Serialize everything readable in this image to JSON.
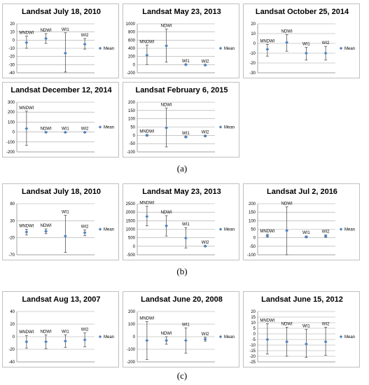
{
  "captions": [
    "(a)",
    "(b)",
    "(c)"
  ],
  "legend_label": "Mean",
  "colors": {
    "marker": "#4f81bd",
    "error": "#555555",
    "grid": "#a6a6a6"
  },
  "chart_data": [
    {
      "type": "scatter",
      "title": "Landsat July 18, 2010",
      "categories": [
        "MNDWI",
        "NDWI",
        "WI1",
        "WI2"
      ],
      "yticks": [
        20,
        10,
        0,
        -10,
        -20,
        -30,
        -40
      ],
      "ylim": [
        -40,
        20
      ],
      "series": [
        {
          "name": "Mean",
          "values": [
            -3,
            2,
            -16,
            -5
          ],
          "lower": [
            -10,
            -4,
            -39,
            -11
          ],
          "upper": [
            5,
            8,
            9,
            2
          ]
        }
      ]
    },
    {
      "type": "scatter",
      "title": "Landsat May 23, 2013",
      "categories": [
        "MNDWI",
        "NDWI",
        "WI1",
        "WI2"
      ],
      "yticks": [
        1000,
        800,
        600,
        400,
        200,
        0,
        -200
      ],
      "ylim": [
        -200,
        1000
      ],
      "series": [
        {
          "name": "Mean",
          "values": [
            230,
            460,
            0,
            -10
          ],
          "lower": [
            0,
            60,
            -10,
            -20
          ],
          "upper": [
            480,
            870,
            10,
            0
          ]
        }
      ]
    },
    {
      "type": "scatter",
      "title": "Landsat October 25, 2014",
      "categories": [
        "MNDWI",
        "NDWI",
        "WI1",
        "WI2"
      ],
      "yticks": [
        20,
        10,
        0,
        -10,
        -20,
        -30
      ],
      "ylim": [
        -30,
        20
      ],
      "series": [
        {
          "name": "Mean",
          "values": [
            -6,
            1,
            -10,
            -10
          ],
          "lower": [
            -13,
            -8,
            -17,
            -17
          ],
          "upper": [
            -1,
            9,
            -4,
            -3
          ]
        }
      ]
    },
    {
      "type": "scatter",
      "title": "Landsat December 12, 2014",
      "categories": [
        "MNDWI",
        "NDWI",
        "WI1",
        "WI2"
      ],
      "yticks": [
        300,
        200,
        100,
        0,
        -100,
        -200
      ],
      "ylim": [
        -200,
        300
      ],
      "series": [
        {
          "name": "Mean",
          "values": [
            35,
            -2,
            -3,
            -3
          ],
          "lower": [
            -135,
            -5,
            -5,
            -5
          ],
          "upper": [
            210,
            2,
            1,
            1
          ]
        }
      ]
    },
    {
      "type": "scatter",
      "title": "Landsat February 6, 2015",
      "categories": [
        "MNDWI",
        "NDWI",
        "WI1",
        "WI2"
      ],
      "yticks": [
        200,
        150,
        100,
        50,
        0,
        -50,
        -100
      ],
      "ylim": [
        -100,
        200
      ],
      "series": [
        {
          "name": "Mean",
          "values": [
            0,
            45,
            -10,
            -4
          ],
          "lower": [
            -4,
            -70,
            -14,
            -8
          ],
          "upper": [
            4,
            165,
            -6,
            0
          ]
        }
      ]
    },
    {
      "type": "scatter",
      "title": "Landsat July 18, 2010",
      "categories": [
        "MNDWI",
        "NDWI",
        "WI1",
        "WI2"
      ],
      "yticks": [
        80,
        30,
        -20,
        -70
      ],
      "ylim": [
        -70,
        80
      ],
      "series": [
        {
          "name": "Mean",
          "values": [
            -3,
            -1,
            -15,
            -5
          ],
          "lower": [
            -12,
            -8,
            -63,
            -14
          ],
          "upper": [
            5,
            6,
            46,
            3
          ]
        }
      ]
    },
    {
      "type": "scatter",
      "title": "Landsat May 23, 2013",
      "categories": [
        "MNDWI",
        "NDWI",
        "WI1",
        "WI2"
      ],
      "yticks": [
        2500,
        2000,
        1500,
        1000,
        500,
        0,
        -500
      ],
      "ylim": [
        -500,
        2500
      ],
      "series": [
        {
          "name": "Mean",
          "values": [
            1750,
            1200,
            480,
            10
          ],
          "lower": [
            1200,
            600,
            -100,
            -20
          ],
          "upper": [
            2350,
            1800,
            1100,
            40
          ]
        }
      ]
    },
    {
      "type": "scatter",
      "title": "Landsat Jul 2, 2016",
      "categories": [
        "MNDWI",
        "NDWI",
        "WI1",
        "WI2"
      ],
      "yticks": [
        200,
        150,
        100,
        50,
        0,
        -50,
        -100
      ],
      "ylim": [
        -100,
        200
      ],
      "series": [
        {
          "name": "Mean",
          "values": [
            12,
            42,
            5,
            10
          ],
          "lower": [
            4,
            -100,
            0,
            3
          ],
          "upper": [
            20,
            182,
            10,
            17
          ]
        }
      ]
    },
    {
      "type": "scatter",
      "title": "Landsat Aug 13, 2007",
      "categories": [
        "MNDWI",
        "NDWI",
        "WI1",
        "WI2"
      ],
      "yticks": [
        40,
        20,
        0,
        -20,
        -40
      ],
      "ylim": [
        -40,
        40
      ],
      "series": [
        {
          "name": "Mean",
          "values": [
            -8,
            -8,
            -7,
            -5
          ],
          "lower": [
            -18,
            -19,
            -17,
            -16
          ],
          "upper": [
            2,
            3,
            3,
            6
          ]
        }
      ]
    },
    {
      "type": "scatter",
      "title": "Landsat June 20, 2008",
      "categories": [
        "MNDWI",
        "NDWI",
        "WI1",
        "WI2"
      ],
      "yticks": [
        200,
        100,
        0,
        -100,
        -200
      ],
      "ylim": [
        -200,
        200
      ],
      "series": [
        {
          "name": "Mean",
          "values": [
            -30,
            -30,
            -30,
            -20
          ],
          "lower": [
            -180,
            -60,
            -130,
            -35
          ],
          "upper": [
            120,
            0,
            70,
            -5
          ]
        }
      ]
    },
    {
      "type": "scatter",
      "title": "Landsat June 15, 2012",
      "categories": [
        "MNDWI",
        "NDWI",
        "WI1",
        "WI2"
      ],
      "yticks": [
        20,
        15,
        10,
        5,
        0,
        -5,
        -10,
        -15,
        -20,
        -25
      ],
      "ylim": [
        -25,
        20
      ],
      "series": [
        {
          "name": "Mean",
          "values": [
            -5,
            -7,
            -9,
            -7
          ],
          "lower": [
            -18,
            -20,
            -21,
            -19
          ],
          "upper": [
            9,
            6,
            4,
            6
          ]
        }
      ]
    }
  ]
}
